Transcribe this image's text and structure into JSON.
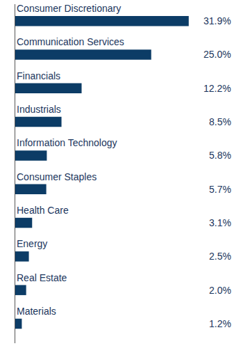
{
  "chart_data": {
    "type": "bar",
    "orientation": "horizontal",
    "categories": [
      "Consumer Discretionary",
      "Communication Services",
      "Financials",
      "Industrials",
      "Information Technology",
      "Consumer Staples",
      "Health Care",
      "Energy",
      "Real Estate",
      "Materials"
    ],
    "values": [
      31.9,
      25.0,
      12.2,
      8.5,
      5.8,
      5.7,
      3.1,
      2.5,
      2.0,
      1.2
    ],
    "value_labels": [
      "31.9%",
      "25.0%",
      "12.2%",
      "8.5%",
      "5.8%",
      "5.7%",
      "3.1%",
      "2.5%",
      "2.0%",
      "1.2%"
    ],
    "color": "#0c3c66",
    "data_labels": true,
    "tick_labels": false,
    "grid": false
  }
}
